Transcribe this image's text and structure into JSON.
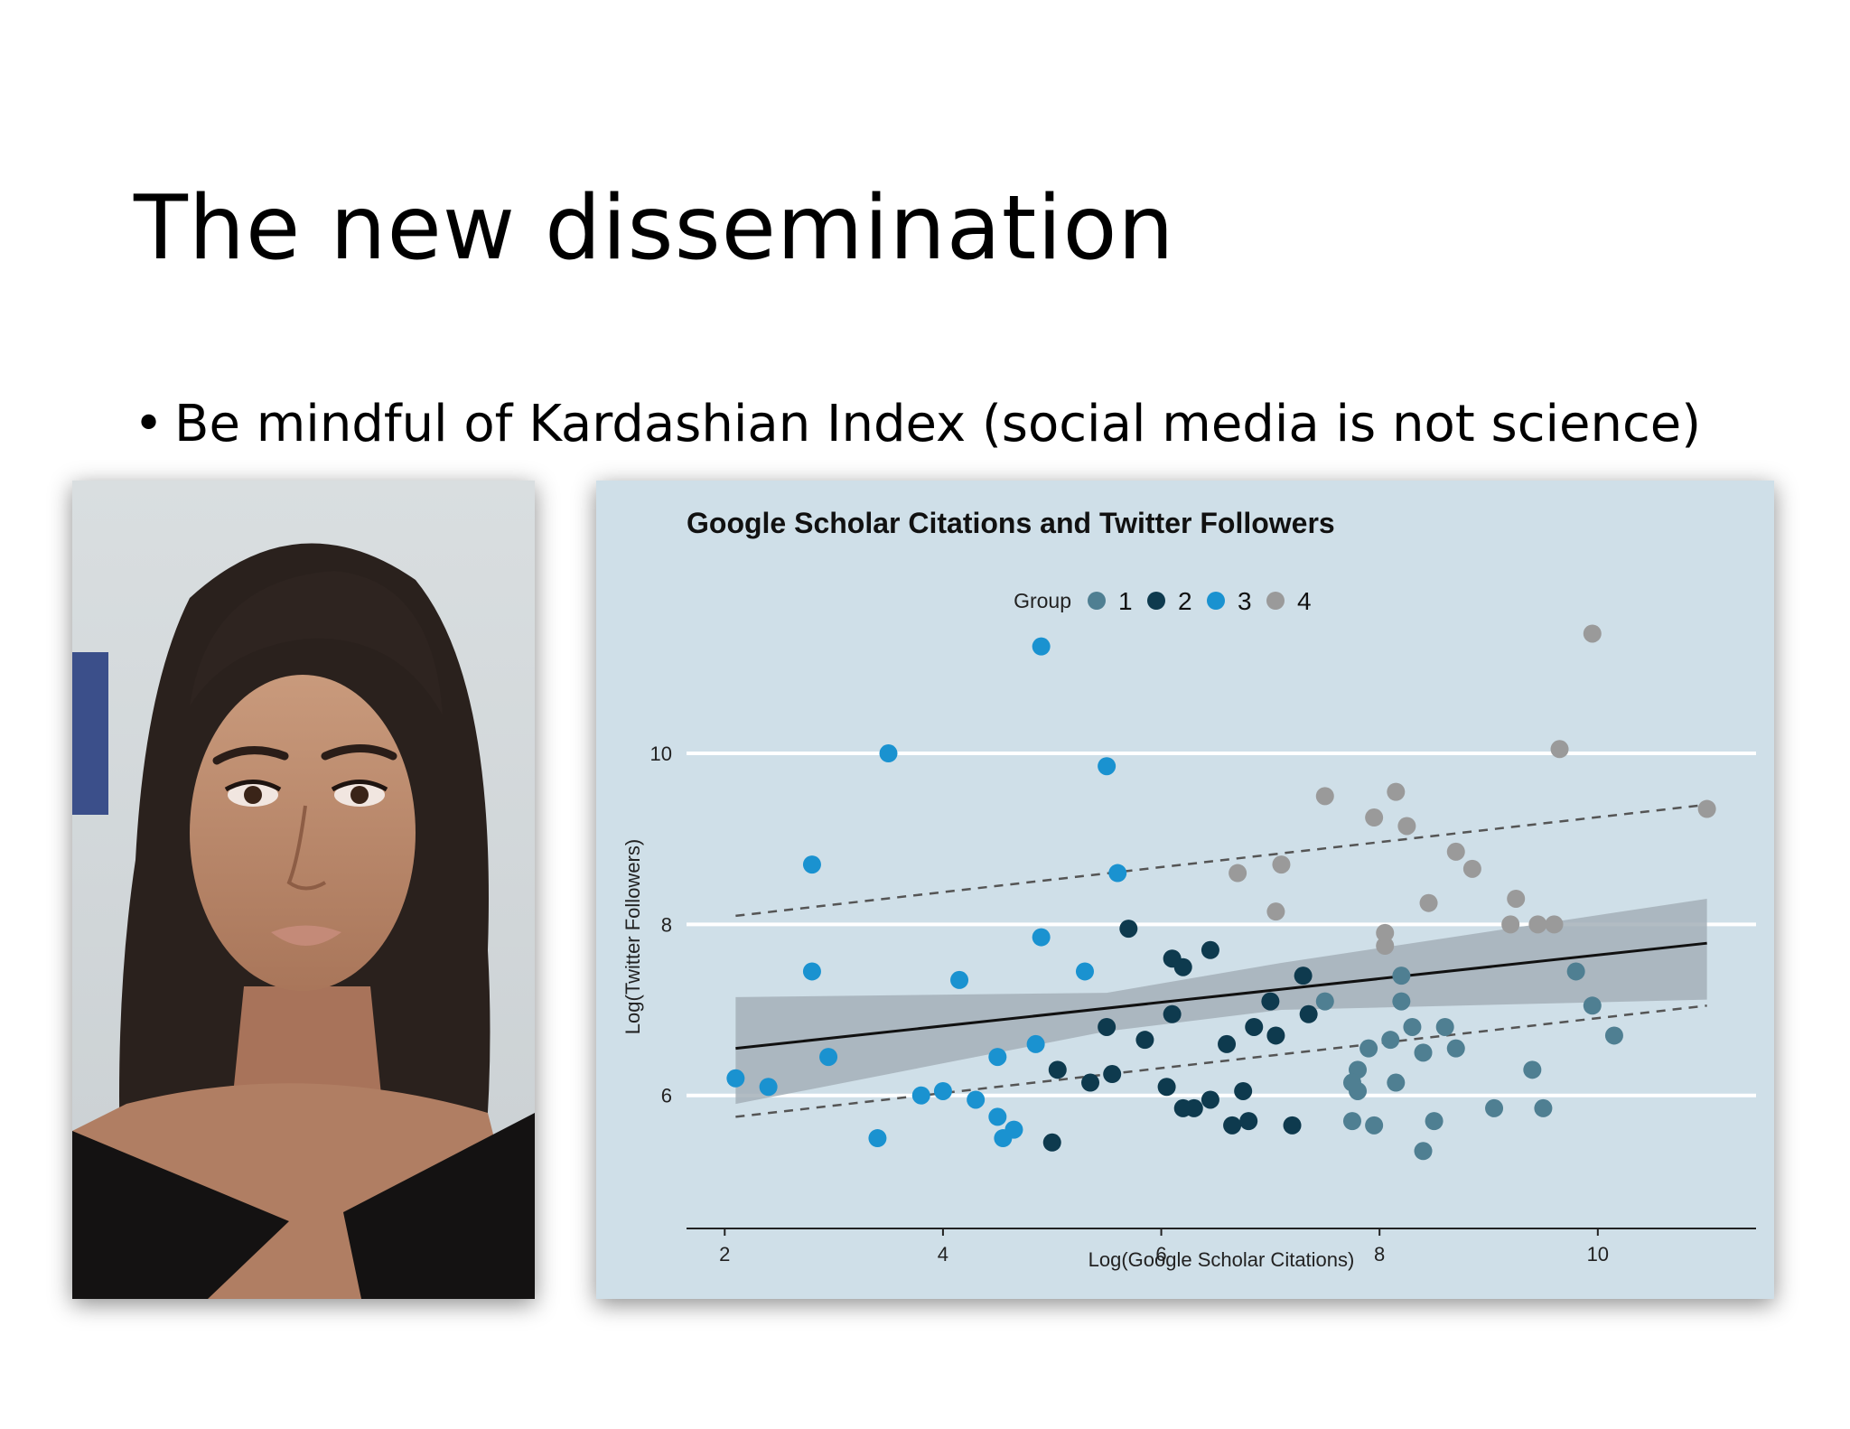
{
  "slide": {
    "title": "The new dissemination",
    "bullet_marker": "•",
    "bullet_text": "Be mindful of Kardashian Index (social media is not science)"
  },
  "photo": {
    "description_icon": "portrait-photo"
  },
  "colors": {
    "panel_bg": "#cfdfe8",
    "group_1": "#4f7f92",
    "group_2": "#0e3a4e",
    "group_3": "#1a92d0",
    "group_4": "#9a9a9a",
    "band": "#a4b0b8"
  },
  "chart_data": {
    "type": "scatter",
    "title": "Google Scholar Citations and Twitter Followers",
    "xlabel": "Log(Google Scholar Citations)",
    "ylabel": "Log(Twitter Followers)",
    "xlim": [
      1.65,
      11.45
    ],
    "ylim": [
      4.55,
      11.5
    ],
    "xticks": [
      2,
      4,
      6,
      8,
      10
    ],
    "yticks": [
      6,
      8,
      10
    ],
    "grid": "horizontal",
    "legend": {
      "title": "Group",
      "position": "top",
      "entries": [
        "1",
        "2",
        "3",
        "4"
      ]
    },
    "series": [
      {
        "name": "1",
        "points": [
          [
            7.5,
            7.1
          ],
          [
            7.8,
            6.3
          ],
          [
            7.8,
            6.05
          ],
          [
            7.75,
            6.15
          ],
          [
            7.9,
            6.55
          ],
          [
            8.1,
            6.65
          ],
          [
            8.2,
            7.4
          ],
          [
            8.2,
            7.1
          ],
          [
            8.3,
            6.8
          ],
          [
            8.4,
            6.5
          ],
          [
            8.6,
            6.8
          ],
          [
            8.7,
            6.55
          ],
          [
            8.15,
            6.15
          ],
          [
            7.75,
            5.7
          ],
          [
            7.95,
            5.65
          ],
          [
            8.5,
            5.7
          ],
          [
            8.4,
            5.35
          ],
          [
            9.05,
            5.85
          ],
          [
            9.4,
            6.3
          ],
          [
            9.5,
            5.85
          ],
          [
            9.8,
            7.45
          ],
          [
            9.95,
            7.05
          ],
          [
            10.15,
            6.7
          ]
        ]
      },
      {
        "name": "2",
        "points": [
          [
            5.05,
            6.3
          ],
          [
            5.35,
            6.15
          ],
          [
            5.5,
            6.8
          ],
          [
            5.55,
            6.25
          ],
          [
            5.7,
            7.95
          ],
          [
            5.85,
            6.65
          ],
          [
            6.05,
            6.1
          ],
          [
            6.1,
            7.6
          ],
          [
            6.1,
            6.95
          ],
          [
            6.2,
            7.5
          ],
          [
            6.2,
            5.85
          ],
          [
            6.3,
            5.85
          ],
          [
            6.45,
            7.7
          ],
          [
            6.45,
            5.95
          ],
          [
            6.6,
            6.6
          ],
          [
            6.65,
            5.65
          ],
          [
            6.75,
            6.05
          ],
          [
            6.8,
            5.7
          ],
          [
            6.85,
            6.8
          ],
          [
            7.0,
            7.1
          ],
          [
            7.05,
            6.7
          ],
          [
            7.2,
            5.65
          ],
          [
            7.3,
            7.4
          ],
          [
            7.35,
            6.95
          ],
          [
            5.0,
            5.45
          ]
        ]
      },
      {
        "name": "3",
        "points": [
          [
            2.1,
            6.2
          ],
          [
            2.4,
            6.1
          ],
          [
            2.8,
            8.7
          ],
          [
            2.8,
            7.45
          ],
          [
            2.95,
            6.45
          ],
          [
            3.4,
            5.5
          ],
          [
            3.5,
            10.0
          ],
          [
            3.8,
            6.0
          ],
          [
            4.0,
            6.05
          ],
          [
            4.15,
            7.35
          ],
          [
            4.3,
            5.95
          ],
          [
            4.5,
            5.75
          ],
          [
            4.5,
            6.45
          ],
          [
            4.55,
            5.5
          ],
          [
            4.65,
            5.6
          ],
          [
            4.85,
            6.6
          ],
          [
            4.9,
            7.85
          ],
          [
            4.9,
            11.25
          ],
          [
            5.3,
            7.45
          ],
          [
            5.5,
            9.85
          ],
          [
            5.6,
            8.6
          ]
        ]
      },
      {
        "name": "4",
        "points": [
          [
            6.7,
            8.6
          ],
          [
            7.05,
            8.15
          ],
          [
            7.1,
            8.7
          ],
          [
            7.5,
            9.5
          ],
          [
            7.95,
            9.25
          ],
          [
            8.05,
            7.75
          ],
          [
            8.05,
            7.9
          ],
          [
            8.15,
            9.55
          ],
          [
            8.25,
            9.15
          ],
          [
            8.45,
            8.25
          ],
          [
            8.7,
            8.85
          ],
          [
            8.85,
            8.65
          ],
          [
            9.2,
            8.0
          ],
          [
            9.25,
            8.3
          ],
          [
            9.45,
            8.0
          ],
          [
            9.6,
            8.0
          ],
          [
            9.65,
            10.05
          ],
          [
            9.95,
            11.4
          ],
          [
            11.0,
            9.35
          ]
        ]
      }
    ],
    "fit": {
      "line": [
        [
          2.1,
          6.55
        ],
        [
          11.0,
          7.78
        ]
      ],
      "band_upper": [
        [
          2.1,
          7.15
        ],
        [
          5.5,
          7.2
        ],
        [
          7.1,
          7.55
        ],
        [
          11.0,
          8.3
        ]
      ],
      "band_lower": [
        [
          2.1,
          5.9
        ],
        [
          5.5,
          6.75
        ],
        [
          7.1,
          7.0
        ],
        [
          11.0,
          7.12
        ]
      ],
      "dashed_upper": [
        [
          2.1,
          8.1
        ],
        [
          11.0,
          9.4
        ]
      ],
      "dashed_lower": [
        [
          2.1,
          5.75
        ],
        [
          11.0,
          7.05
        ]
      ]
    }
  }
}
